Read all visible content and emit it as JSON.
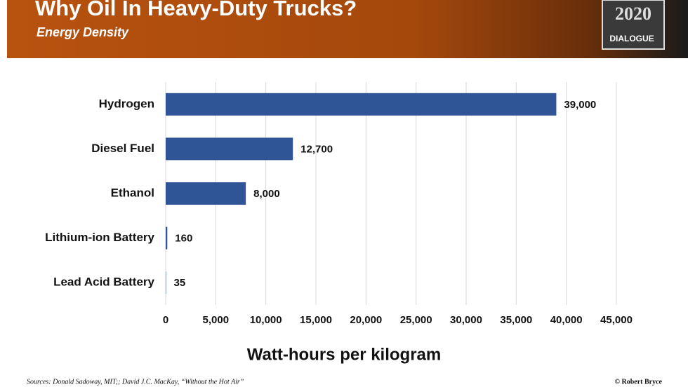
{
  "chart_data": {
    "type": "bar",
    "orientation": "horizontal",
    "title": "Why Oil In Heavy-Duty Trucks?",
    "subtitle": "Energy Density",
    "logo_text": [
      "2020",
      "DIALOGUE"
    ],
    "categories": [
      "Hydrogen",
      "Diesel Fuel",
      "Ethanol",
      "Lithium-ion Battery",
      "Lead Acid Battery"
    ],
    "values": [
      39000,
      12700,
      8000,
      160,
      35
    ],
    "value_labels": [
      "39,000",
      "12,700",
      "8,000",
      "160",
      "35"
    ],
    "color": "#2f5597",
    "xlabel": "Watt-hours per kilogram",
    "xlim": [
      0,
      45000
    ],
    "xticks": [
      0,
      {
        "value": 5000,
        "label": "5,000"
      },
      {
        "value": 10000,
        "label": "10,000"
      },
      {
        "value": 15000,
        "label": "15,000"
      },
      {
        "value": 20000,
        "label": "20,000"
      },
      {
        "value": 25000,
        "label": "25,000"
      },
      {
        "value": 30000,
        "label": "30,000"
      },
      {
        "value": 35000,
        "label": "35,000"
      },
      {
        "value": 40000,
        "label": "40,000"
      },
      {
        "value": 45000,
        "label": "45,000"
      }
    ],
    "grid": true,
    "sources": "Sources: Donald Sadoway, MIT;; David J.C. MacKay, “Without the Hot Air”",
    "credit": "© Robert Bryce"
  }
}
